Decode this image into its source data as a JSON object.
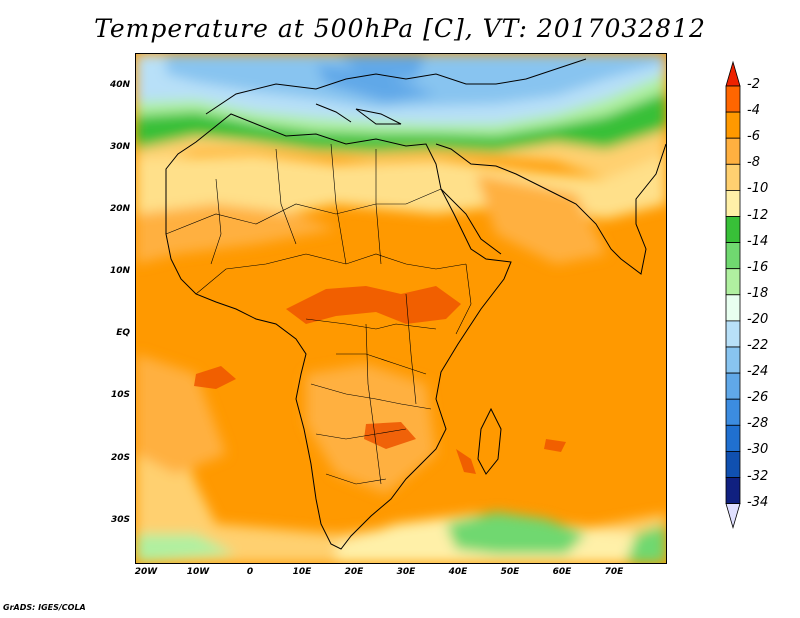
{
  "title": "Temperature at 500hPa [C], VT: 2017032812",
  "credit": "GrADS: IGES/COLA",
  "map": {
    "lat_ticks": [
      "40N",
      "30N",
      "20N",
      "10N",
      "EQ",
      "10S",
      "20S",
      "30S"
    ],
    "lon_ticks": [
      "20W",
      "10W",
      "0",
      "10E",
      "20E",
      "30E",
      "40E",
      "50E",
      "60E",
      "70E"
    ]
  },
  "colorbar": {
    "labels": [
      "-2",
      "-4",
      "-6",
      "-8",
      "-10",
      "-12",
      "-14",
      "-16",
      "-18",
      "-20",
      "-22",
      "-24",
      "-26",
      "-28",
      "-30",
      "-32",
      "-34"
    ],
    "colors": [
      "#ee2200",
      "#ff6600",
      "#ff9900",
      "#ffb040",
      "#ffd070",
      "#fff0a8",
      "#38c038",
      "#70d870",
      "#b0f0a0",
      "#e8fff0",
      "#b8e0f8",
      "#88c4f0",
      "#60a8e8",
      "#3c8ce0",
      "#2070d0",
      "#1050b0",
      "#102080"
    ]
  }
}
